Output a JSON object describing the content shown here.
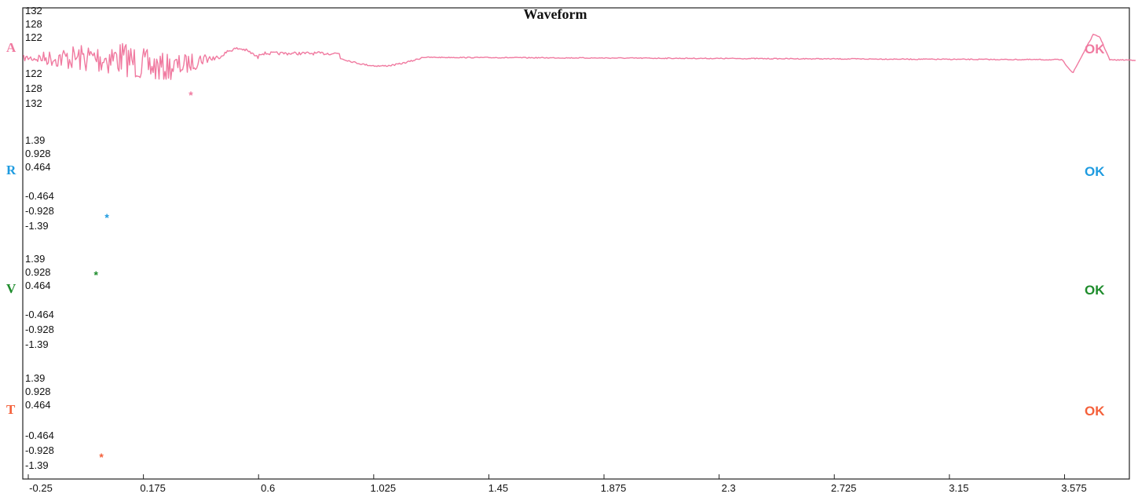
{
  "chart_data": {
    "type": "line",
    "title": "Waveform",
    "x_ticks": [
      "-0.25",
      "0.175",
      "0.6",
      "1.025",
      "1.45",
      "1.875",
      "2.3",
      "2.725",
      "3.15",
      "3.575"
    ],
    "xlim": [
      -0.25,
      3.82
    ],
    "channels": [
      {
        "name": "A",
        "color": "#f07aa0",
        "y_ticks": [
          "132",
          "128",
          "122",
          "122",
          "128",
          "132"
        ],
        "status": "OK",
        "event_marker": "*",
        "marker_x": 0.35,
        "style": "air"
      },
      {
        "name": "R",
        "color": "#1e9be0",
        "y_ticks": [
          "1.39",
          "0.928",
          "0.464",
          "-0.464",
          "-0.928",
          "-1.39"
        ],
        "status": "OK",
        "event_marker": "*",
        "marker_x": 0.04,
        "style": "seismic",
        "decay_end": 0.35
      },
      {
        "name": "V",
        "color": "#1e8c2c",
        "y_ticks": [
          "1.39",
          "0.928",
          "0.464",
          "-0.464",
          "-0.928",
          "-1.39"
        ],
        "status": "OK",
        "event_marker": "*",
        "marker_x": 0.0,
        "style": "seismic",
        "decay_end": 0.3
      },
      {
        "name": "T",
        "color": "#f4603a",
        "y_ticks": [
          "1.39",
          "0.928",
          "0.464",
          "-0.464",
          "-0.928",
          "-1.39"
        ],
        "status": "OK",
        "event_marker": "*",
        "marker_x": 0.02,
        "style": "seismic",
        "decay_end": 0.3
      }
    ]
  }
}
